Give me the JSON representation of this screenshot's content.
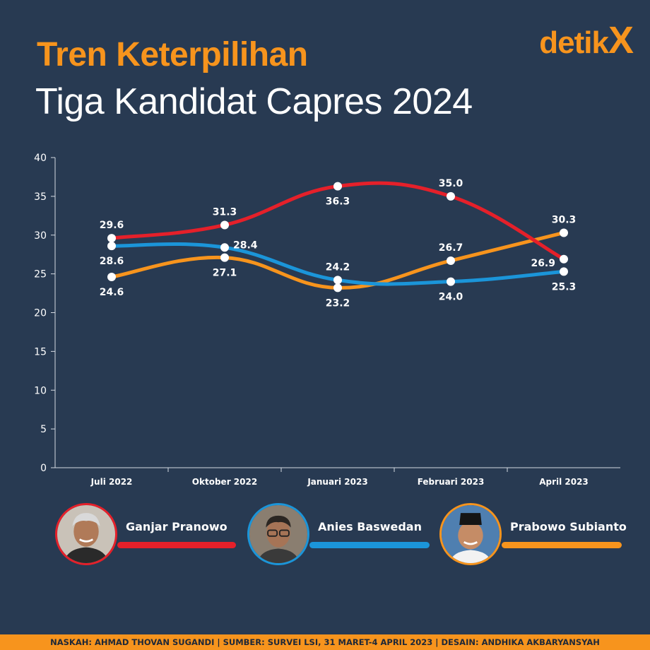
{
  "header": {
    "title": "Tren Keterpilihan",
    "subtitle": "Tiga Kandidat Capres 2024",
    "brand_main": "detik",
    "brand_x": "X"
  },
  "chart_data": {
    "type": "line",
    "title": "",
    "xlabel": "",
    "ylabel": "",
    "categories": [
      "Juli 2022",
      "Oktober 2022",
      "Januari 2023",
      "Februari 2023",
      "April 2023"
    ],
    "ylim": [
      0,
      40
    ],
    "yticks": [
      0,
      5,
      10,
      15,
      20,
      25,
      30,
      35,
      40
    ],
    "grid": false,
    "series": [
      {
        "name": "Ganjar Pranowo",
        "color": "#e5202a",
        "values": [
          29.6,
          31.3,
          36.3,
          35.0,
          26.9
        ],
        "labels": [
          "29.6",
          "31.3",
          "36.3",
          "35.0",
          "26.9"
        ]
      },
      {
        "name": "Anies Baswedan",
        "color": "#1b95d9",
        "values": [
          28.6,
          28.4,
          24.2,
          24.0,
          25.3
        ],
        "labels": [
          "28.6",
          "28.4",
          "24.2",
          "24.0",
          "25.3"
        ]
      },
      {
        "name": "Prabowo Subianto",
        "color": "#f7941d",
        "values": [
          24.6,
          27.1,
          23.2,
          26.7,
          30.3
        ],
        "labels": [
          "24.6",
          "27.1",
          "23.2",
          "26.7",
          "30.3"
        ]
      }
    ]
  },
  "legend": {
    "items": [
      {
        "name": "Ganjar Pranowo",
        "color": "#e5202a"
      },
      {
        "name": "Anies Baswedan",
        "color": "#1b95d9"
      },
      {
        "name": "Prabowo Subianto",
        "color": "#f7941d"
      }
    ]
  },
  "footer": {
    "credits": "NASKAH: AHMAD THOVAN SUGANDI | SUMBER: SURVEI LSI, 31 MARET-4 APRIL 2023 | DESAIN: ANDHIKA AKBARYANSYAH"
  }
}
